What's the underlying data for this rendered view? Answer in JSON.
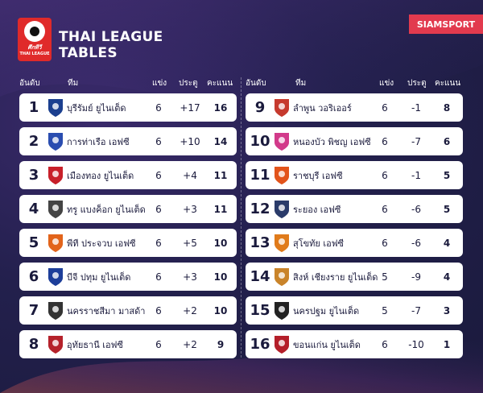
{
  "header": {
    "logo_line1": "ศึกทีวี",
    "logo_line2": "THAI LEAGUE",
    "title_line1": "THAI LEAGUE",
    "title_line2": "TABLES",
    "brand": "SIAMSPORT"
  },
  "columns": {
    "rank": "อันดับ",
    "team": "ทีม",
    "played": "แข่ง",
    "goal_diff": "ประตู",
    "points": "คะแนน"
  },
  "colors": {
    "background": "#23204d",
    "row_bg": "#ffffff",
    "brand": "#e23a4e",
    "logo": "#e02a2a"
  },
  "left_rows": [
    {
      "rank": "1",
      "team": "บุรีรัมย์ ยูไนเต็ด",
      "played": "6",
      "gd": "+17",
      "pts": "16",
      "crest_color": "#1b3f8f",
      "crest_icon": "buriram-crest-icon"
    },
    {
      "rank": "2",
      "team": "การท่าเรือ เอฟซี",
      "played": "6",
      "gd": "+10",
      "pts": "14",
      "crest_color": "#2a4db0",
      "crest_icon": "port-crest-icon"
    },
    {
      "rank": "3",
      "team": "เมืองทอง ยูไนเต็ด",
      "played": "6",
      "gd": "+4",
      "pts": "11",
      "crest_color": "#c8202a",
      "crest_icon": "muangthong-crest-icon"
    },
    {
      "rank": "4",
      "team": "ทรู แบงค็อก ยูไนเต็ด",
      "played": "6",
      "gd": "+3",
      "pts": "11",
      "crest_color": "#444444",
      "crest_icon": "true-bangkok-crest-icon"
    },
    {
      "rank": "5",
      "team": "พีที ประจวบ เอฟซี",
      "played": "6",
      "gd": "+5",
      "pts": "10",
      "crest_color": "#e2641b",
      "crest_icon": "pt-prachuap-crest-icon"
    },
    {
      "rank": "6",
      "team": "บีจี ปทุม ยูไนเต็ด",
      "played": "6",
      "gd": "+3",
      "pts": "10",
      "crest_color": "#1d3e9a",
      "crest_icon": "bg-pathum-crest-icon"
    },
    {
      "rank": "7",
      "team": "นครราชสีมา มาสด้า",
      "played": "6",
      "gd": "+2",
      "pts": "10",
      "crest_color": "#333333",
      "crest_icon": "nakhon-ratchasima-crest-icon"
    },
    {
      "rank": "8",
      "team": "อุทัยธานี เอฟซี",
      "played": "6",
      "gd": "+2",
      "pts": "9",
      "crest_color": "#b5222b",
      "crest_icon": "uthai-thani-crest-icon"
    }
  ],
  "right_rows": [
    {
      "rank": "9",
      "team": "ลำพูน วอริเออร์",
      "played": "6",
      "gd": "-1",
      "pts": "8",
      "crest_color": "#c63a2e",
      "crest_icon": "lamphun-crest-icon"
    },
    {
      "rank": "10",
      "team": "หนองบัว พิชญ เอฟซี",
      "played": "6",
      "gd": "-7",
      "pts": "6",
      "crest_color": "#d23a8a",
      "crest_icon": "nongbua-crest-icon"
    },
    {
      "rank": "11",
      "team": "ราชบุรี เอฟซี",
      "played": "6",
      "gd": "-1",
      "pts": "5",
      "crest_color": "#e2541b",
      "crest_icon": "ratchaburi-crest-icon"
    },
    {
      "rank": "12",
      "team": "ระยอง เอฟซี",
      "played": "6",
      "gd": "-6",
      "pts": "5",
      "crest_color": "#2a3b6a",
      "crest_icon": "rayong-crest-icon"
    },
    {
      "rank": "13",
      "team": "สุโขทัย เอฟซี",
      "played": "6",
      "gd": "-6",
      "pts": "4",
      "crest_color": "#e07b1b",
      "crest_icon": "sukhothai-crest-icon"
    },
    {
      "rank": "14",
      "team": "สิงห์ เชียงราย ยูไนเต็ด",
      "played": "5",
      "gd": "-9",
      "pts": "4",
      "crest_color": "#c9842a",
      "crest_icon": "chiangrai-crest-icon"
    },
    {
      "rank": "15",
      "team": "นครปฐม ยูไนเต็ด",
      "played": "5",
      "gd": "-7",
      "pts": "3",
      "crest_color": "#222222",
      "crest_icon": "nakhon-pathom-crest-icon"
    },
    {
      "rank": "16",
      "team": "ขอนแก่น ยูไนเต็ด",
      "played": "6",
      "gd": "-10",
      "pts": "1",
      "crest_color": "#b41f2a",
      "crest_icon": "khonkaen-crest-icon"
    }
  ]
}
